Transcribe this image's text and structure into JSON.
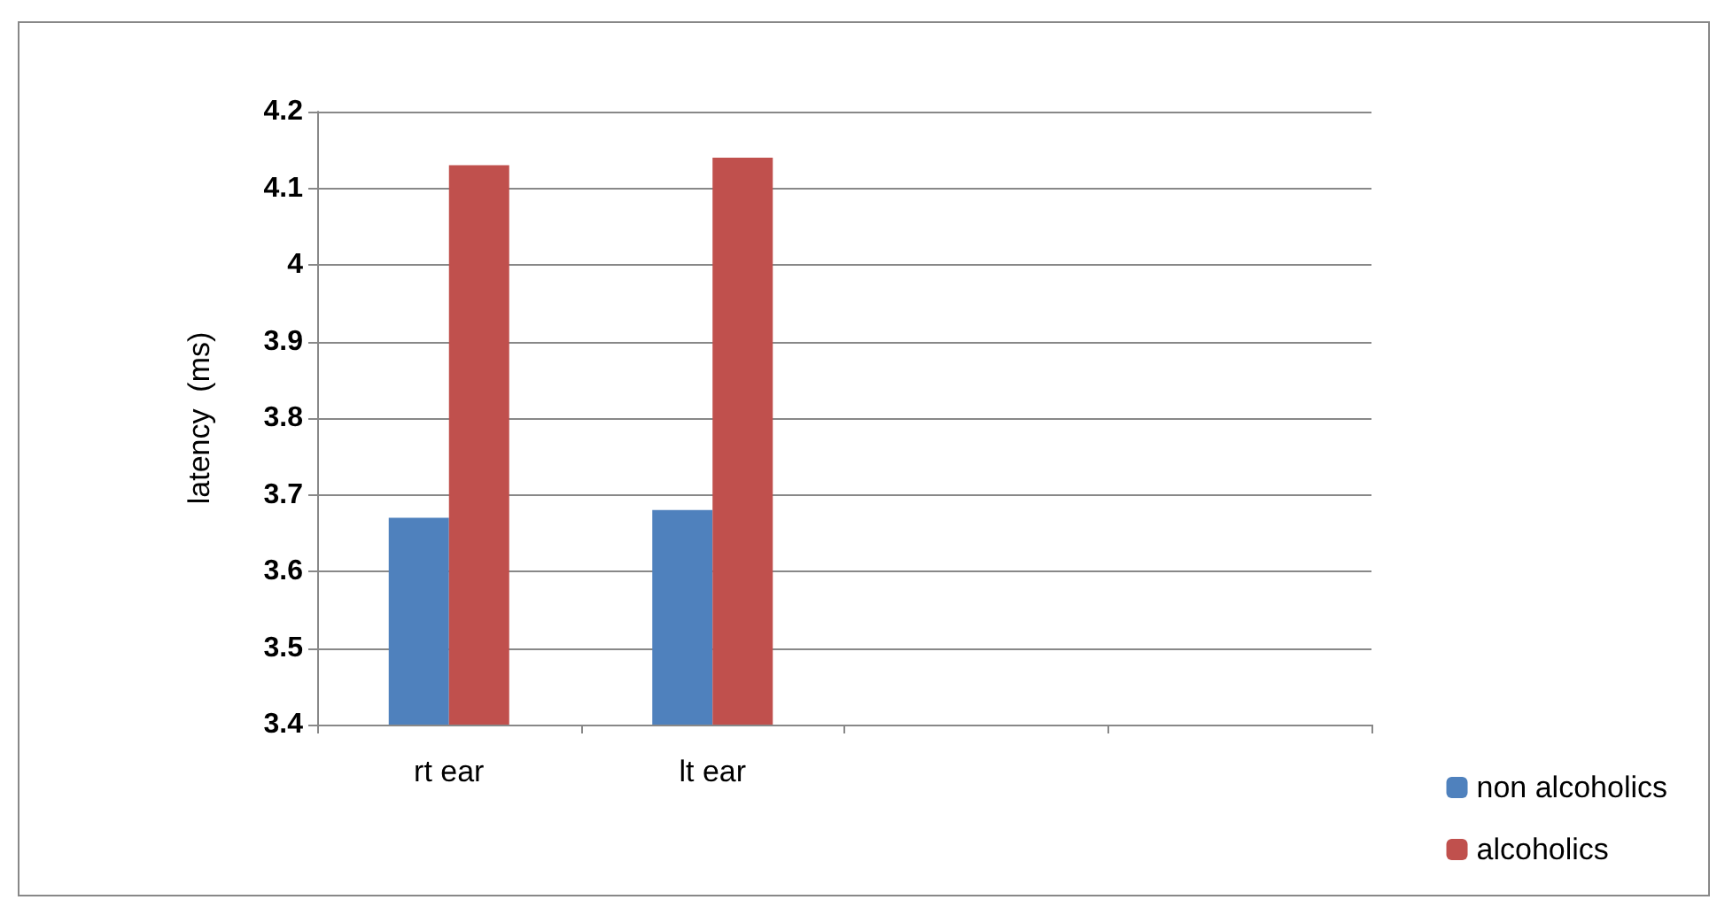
{
  "chart_data": {
    "type": "bar",
    "ylabel": "latency  (ms)",
    "categories": [
      "rt ear",
      "lt ear",
      null,
      null
    ],
    "series": [
      {
        "name": "non alcoholics",
        "color": "#4f81bd",
        "values": [
          3.67,
          3.68,
          null,
          null
        ]
      },
      {
        "name": "alcoholics",
        "color": "#c0504d",
        "values": [
          4.13,
          4.14,
          null,
          null
        ]
      }
    ],
    "ylim": [
      3.4,
      4.2
    ],
    "yticks": [
      3.4,
      3.5,
      3.6,
      3.7,
      3.8,
      3.9,
      4,
      4.1,
      4.2
    ],
    "grid": "y",
    "legend": "right"
  }
}
